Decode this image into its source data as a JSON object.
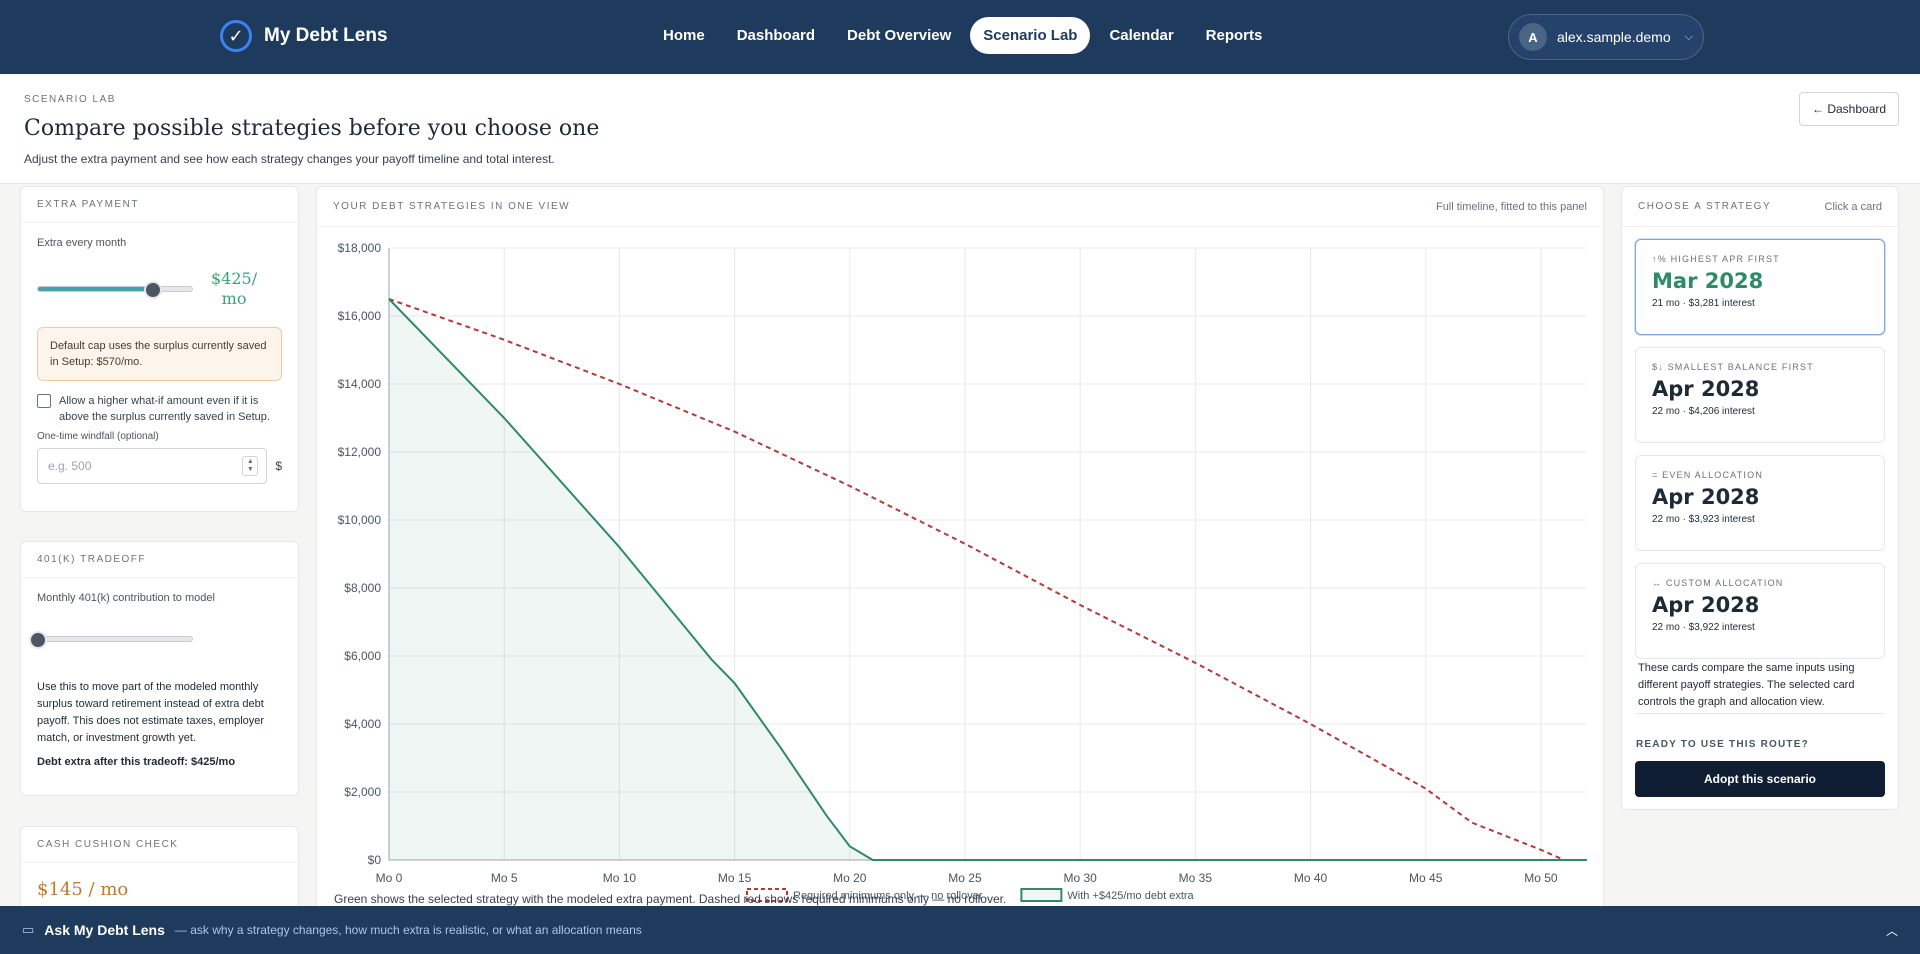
{
  "app": {
    "brand": "My Debt Lens",
    "logo_icon": "check-circle-icon"
  },
  "nav": {
    "items": [
      {
        "label": "Home",
        "active": false
      },
      {
        "label": "Dashboard",
        "active": false
      },
      {
        "label": "Debt Overview",
        "active": false
      },
      {
        "label": "Scenario Lab",
        "active": true
      },
      {
        "label": "Calendar",
        "active": false
      },
      {
        "label": "Reports",
        "active": false
      }
    ]
  },
  "user": {
    "initial": "A",
    "name": "alex.sample.demo"
  },
  "header": {
    "eyebrow": "SCENARIO LAB",
    "title": "Compare possible strategies before you choose one",
    "subtitle": "Adjust the extra payment and see how each strategy changes your payoff timeline and total interest.",
    "back_label": "← Dashboard"
  },
  "extra_payment": {
    "title": "EXTRA PAYMENT",
    "slider_label": "Extra every month",
    "amount_line1": "$425/",
    "amount_line2": "mo",
    "slider_value": 425,
    "slider_max": 570,
    "notice": "Default cap uses the surplus currently saved in Setup: $570/mo.",
    "checkbox_label": "Allow a higher what-if amount even if it is above the surplus currently saved in Setup.",
    "windfall_label": "One-time windfall (optional)",
    "windfall_placeholder": "e.g. 500",
    "windfall_unit": "$"
  },
  "tradeoff": {
    "title": "401(K) TRADEOFF",
    "slider_label": "Monthly 401(k) contribution to model",
    "slider_value": 0,
    "description": "Use this to move part of the modeled monthly surplus toward retirement instead of extra debt payoff. This does not estimate taxes, employer match, or investment growth yet.",
    "result": "Debt extra after this tradeoff: $425/mo"
  },
  "cushion": {
    "title": "CASH CUSHION CHECK",
    "value": "$145 / mo"
  },
  "chart_panel": {
    "title": "YOUR DEBT STRATEGIES IN ONE VIEW",
    "note": "Full timeline, fitted to this panel",
    "caption": "Green shows the selected strategy with the modeled extra payment. Dashed red shows required minimums only — no rollover."
  },
  "chart_data": {
    "type": "line",
    "x_ticks": [
      "Mo 0",
      "Mo 5",
      "Mo 10",
      "Mo 15",
      "Mo 20",
      "Mo 25",
      "Mo 30",
      "Mo 35",
      "Mo 40",
      "Mo 45",
      "Mo 50"
    ],
    "y_ticks": [
      "$0",
      "$2,000",
      "$4,000",
      "$6,000",
      "$8,000",
      "$10,000",
      "$12,000",
      "$14,000",
      "$16,000",
      "$18,000"
    ],
    "xlim": [
      0,
      52
    ],
    "ylim": [
      0,
      18000
    ],
    "grid": true,
    "legend_placement": "bottom-center",
    "series": [
      {
        "name": "Required minimums only — no rollover",
        "color": "#b33a3a",
        "style": "dashed",
        "x": [
          0,
          5,
          10,
          15,
          20,
          25,
          30,
          35,
          40,
          45,
          47,
          50,
          51,
          52
        ],
        "y": [
          16500,
          15300,
          14000,
          12600,
          11000,
          9300,
          7500,
          5800,
          4000,
          2100,
          1100,
          300,
          0,
          0
        ]
      },
      {
        "name": "With +$425/mo debt extra",
        "color": "#2f8a66",
        "style": "solid",
        "fill": true,
        "x": [
          0,
          5,
          10,
          14,
          15,
          17,
          19,
          20,
          21,
          25,
          30,
          35,
          40,
          45,
          50,
          52
        ],
        "y": [
          16500,
          13000,
          9200,
          5900,
          5200,
          3300,
          1300,
          400,
          0,
          0,
          0,
          0,
          0,
          0,
          0,
          0
        ]
      }
    ]
  },
  "strategies": {
    "title": "CHOOSE A STRATEGY",
    "hint": "Click a card",
    "cards": [
      {
        "tag": "↑% HIGHEST APR FIRST",
        "date": "Mar 2028",
        "meta": "21 mo · $3,281 interest",
        "selected": true
      },
      {
        "tag": "$↓ SMALLEST BALANCE FIRST",
        "date": "Apr 2028",
        "meta": "22 mo · $4,206 interest",
        "selected": false
      },
      {
        "tag": "= EVEN ALLOCATION",
        "date": "Apr 2028",
        "meta": "22 mo · $3,923 interest",
        "selected": false
      },
      {
        "tag": "↔ CUSTOM ALLOCATION",
        "date": "Apr 2028",
        "meta": "22 mo · $3,922 interest",
        "selected": false
      }
    ],
    "note": "These cards compare the same inputs using different payoff strategies. The selected card controls the graph and allocation view.",
    "ready_label": "READY TO USE THIS ROUTE?",
    "adopt_label": "Adopt this scenario"
  },
  "assistant": {
    "title": "Ask My Debt Lens",
    "subtitle": "— ask why a strategy changes, how much extra is realistic, or what an allocation means",
    "icon": "chat-icon"
  }
}
